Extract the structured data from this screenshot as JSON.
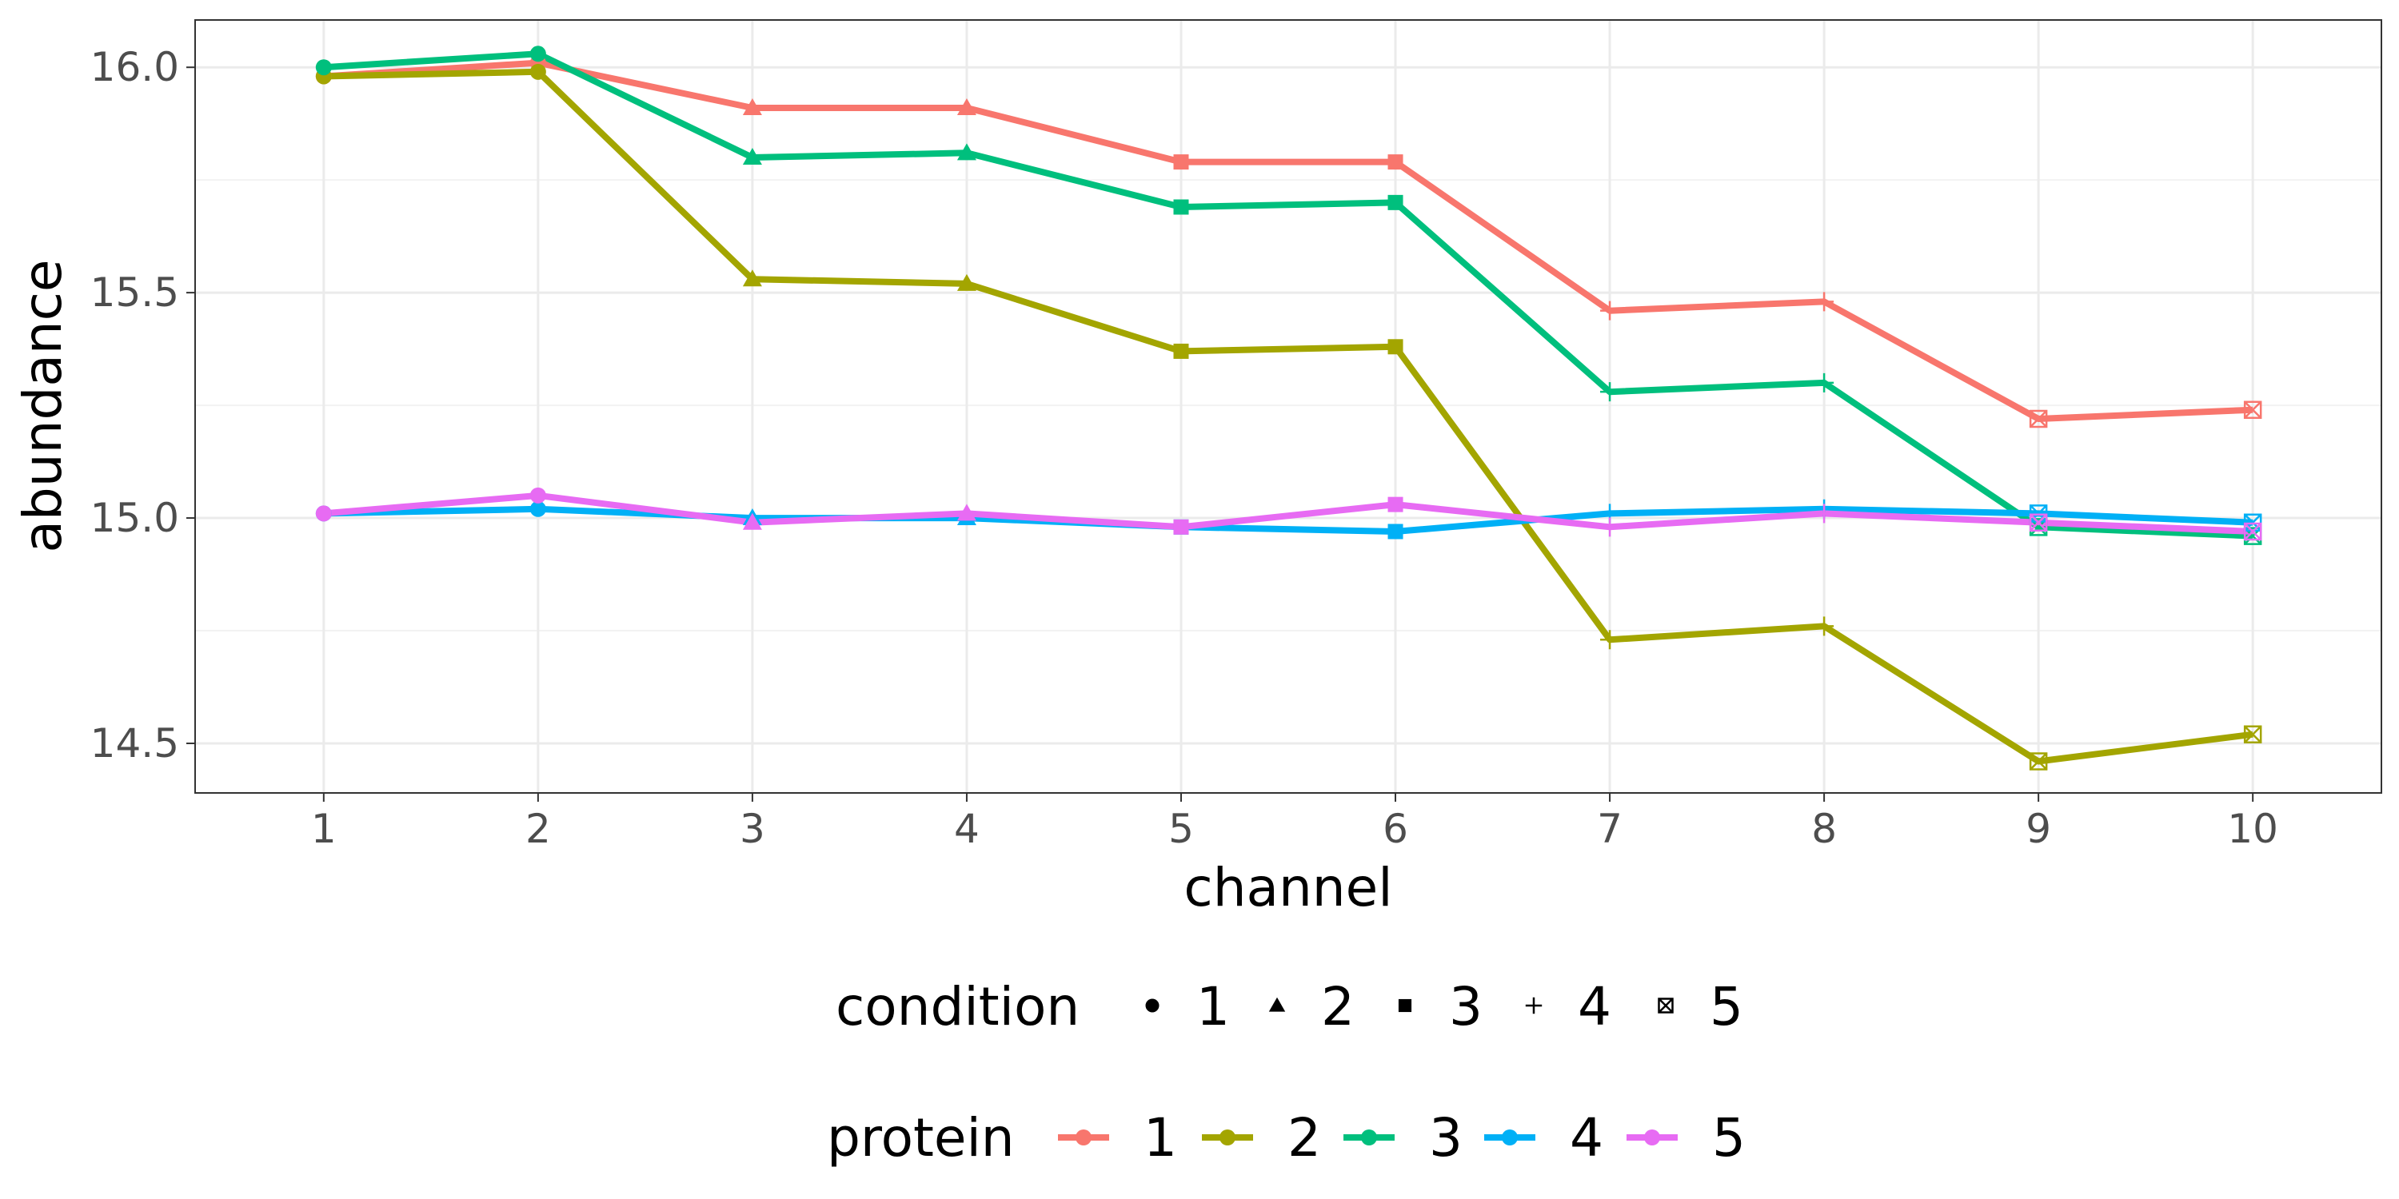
{
  "chart_data": {
    "type": "line",
    "xlabel": "channel",
    "ylabel": "abundance",
    "x": [
      1,
      2,
      3,
      4,
      5,
      6,
      7,
      8,
      9,
      10
    ],
    "xlim": [
      0.4,
      10.6
    ],
    "ylim": [
      14.39,
      16.105
    ],
    "yticks": [
      "14.5",
      "15.0",
      "15.5",
      "16.0"
    ],
    "xticks": [
      "1",
      "2",
      "3",
      "4",
      "5",
      "6",
      "7",
      "8",
      "9",
      "10"
    ],
    "grid": true,
    "conditions": [
      1,
      1,
      2,
      2,
      3,
      3,
      4,
      4,
      5,
      5
    ],
    "series": [
      {
        "name": "1",
        "color": "#F8766D",
        "values": [
          15.98,
          16.01,
          15.91,
          15.91,
          15.79,
          15.79,
          15.46,
          15.48,
          15.22,
          15.24
        ]
      },
      {
        "name": "2",
        "color": "#A3A500",
        "values": [
          15.98,
          15.99,
          15.53,
          15.52,
          15.37,
          15.38,
          14.73,
          14.76,
          14.46,
          14.52
        ]
      },
      {
        "name": "3",
        "color": "#00BF7D",
        "values": [
          16.0,
          16.03,
          15.8,
          15.81,
          15.69,
          15.7,
          15.28,
          15.3,
          14.98,
          14.96
        ]
      },
      {
        "name": "4",
        "color": "#00B0F6",
        "values": [
          15.01,
          15.02,
          15.0,
          15.0,
          14.98,
          14.97,
          15.01,
          15.02,
          15.01,
          14.99
        ]
      },
      {
        "name": "5",
        "color": "#E76BF3",
        "values": [
          15.01,
          15.05,
          14.99,
          15.01,
          14.98,
          15.03,
          14.98,
          15.01,
          14.99,
          14.97
        ]
      }
    ]
  },
  "legend": {
    "condition": {
      "title": "condition",
      "items": [
        {
          "label": "1",
          "shape": "circle"
        },
        {
          "label": "2",
          "shape": "triangle"
        },
        {
          "label": "3",
          "shape": "square"
        },
        {
          "label": "4",
          "shape": "plus"
        },
        {
          "label": "5",
          "shape": "boxed-x"
        }
      ]
    },
    "protein": {
      "title": "protein",
      "items": [
        {
          "label": "1",
          "color": "#F8766D"
        },
        {
          "label": "2",
          "color": "#A3A500"
        },
        {
          "label": "3",
          "color": "#00BF7D"
        },
        {
          "label": "4",
          "color": "#00B0F6"
        },
        {
          "label": "5",
          "color": "#E76BF3"
        }
      ]
    }
  }
}
